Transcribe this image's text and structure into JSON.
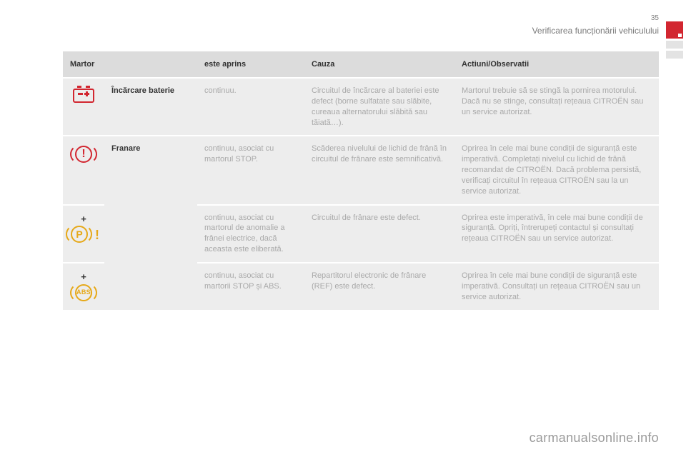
{
  "page": {
    "number": "35",
    "section_title": "Verificarea funcționării vehiculului"
  },
  "theme": {
    "accent_red": "#d22630",
    "accent_amber": "#e6a817",
    "header_bg": "#dcdcdc",
    "cell_bg": "#ededed",
    "muted_text": "#a9a9a9"
  },
  "table": {
    "headers": {
      "lamp": "Martor",
      "lit": "este aprins",
      "cause": "Cauza",
      "action": "Actiuni/Observatii"
    },
    "rows": [
      {
        "icon": "battery",
        "label": "Încărcare baterie",
        "lit": "continuu.",
        "cause": "Circuitul de încărcare al bateriei este defect (borne sulfatate sau slăbite, cureaua alternatorului slăbită sau tăiată…).",
        "action": "Martorul trebuie să se stingă la pornirea motorului. Dacă nu se stinge, consultați rețeaua CITROËN sau un service autorizat."
      },
      {
        "icon": "brake",
        "label": "Franare",
        "label_rowspan": 3,
        "lit": "continuu, asociat cu martorul STOP.",
        "cause": "Scăderea nivelului de lichid de frână în circuitul de frânare este semnificativă.",
        "action": "Oprirea în cele mai bune condiții de siguranță este imperativă. Completați nivelul cu lichid de frână recomandat de CITROËN. Dacă problema persistă, verificați circuitul în rețeaua CITROËN sau la un service autorizat."
      },
      {
        "icon": "pbrake",
        "plus": "+",
        "lit": "continuu, asociat cu martorul de anomalie a frânei electrice, dacă aceasta este eliberată.",
        "cause": "Circuitul de frânare este defect.",
        "action": "Oprirea este imperativă, în cele mai bune condiții de siguranță. Opriți, întrerupeți contactul și consultați rețeaua CITROËN sau un service autorizat."
      },
      {
        "icon": "abs",
        "plus": "+",
        "lit": "continuu, asociat cu martorii STOP și ABS.",
        "cause": "Repartitorul electronic de frânare (REF) este defect.",
        "action": "Oprirea în cele mai bune condiții de siguranță este imperativă. Consultați un rețeaua CITROËN sau un service autorizat."
      }
    ]
  },
  "footer": "carmanualsonline.info"
}
